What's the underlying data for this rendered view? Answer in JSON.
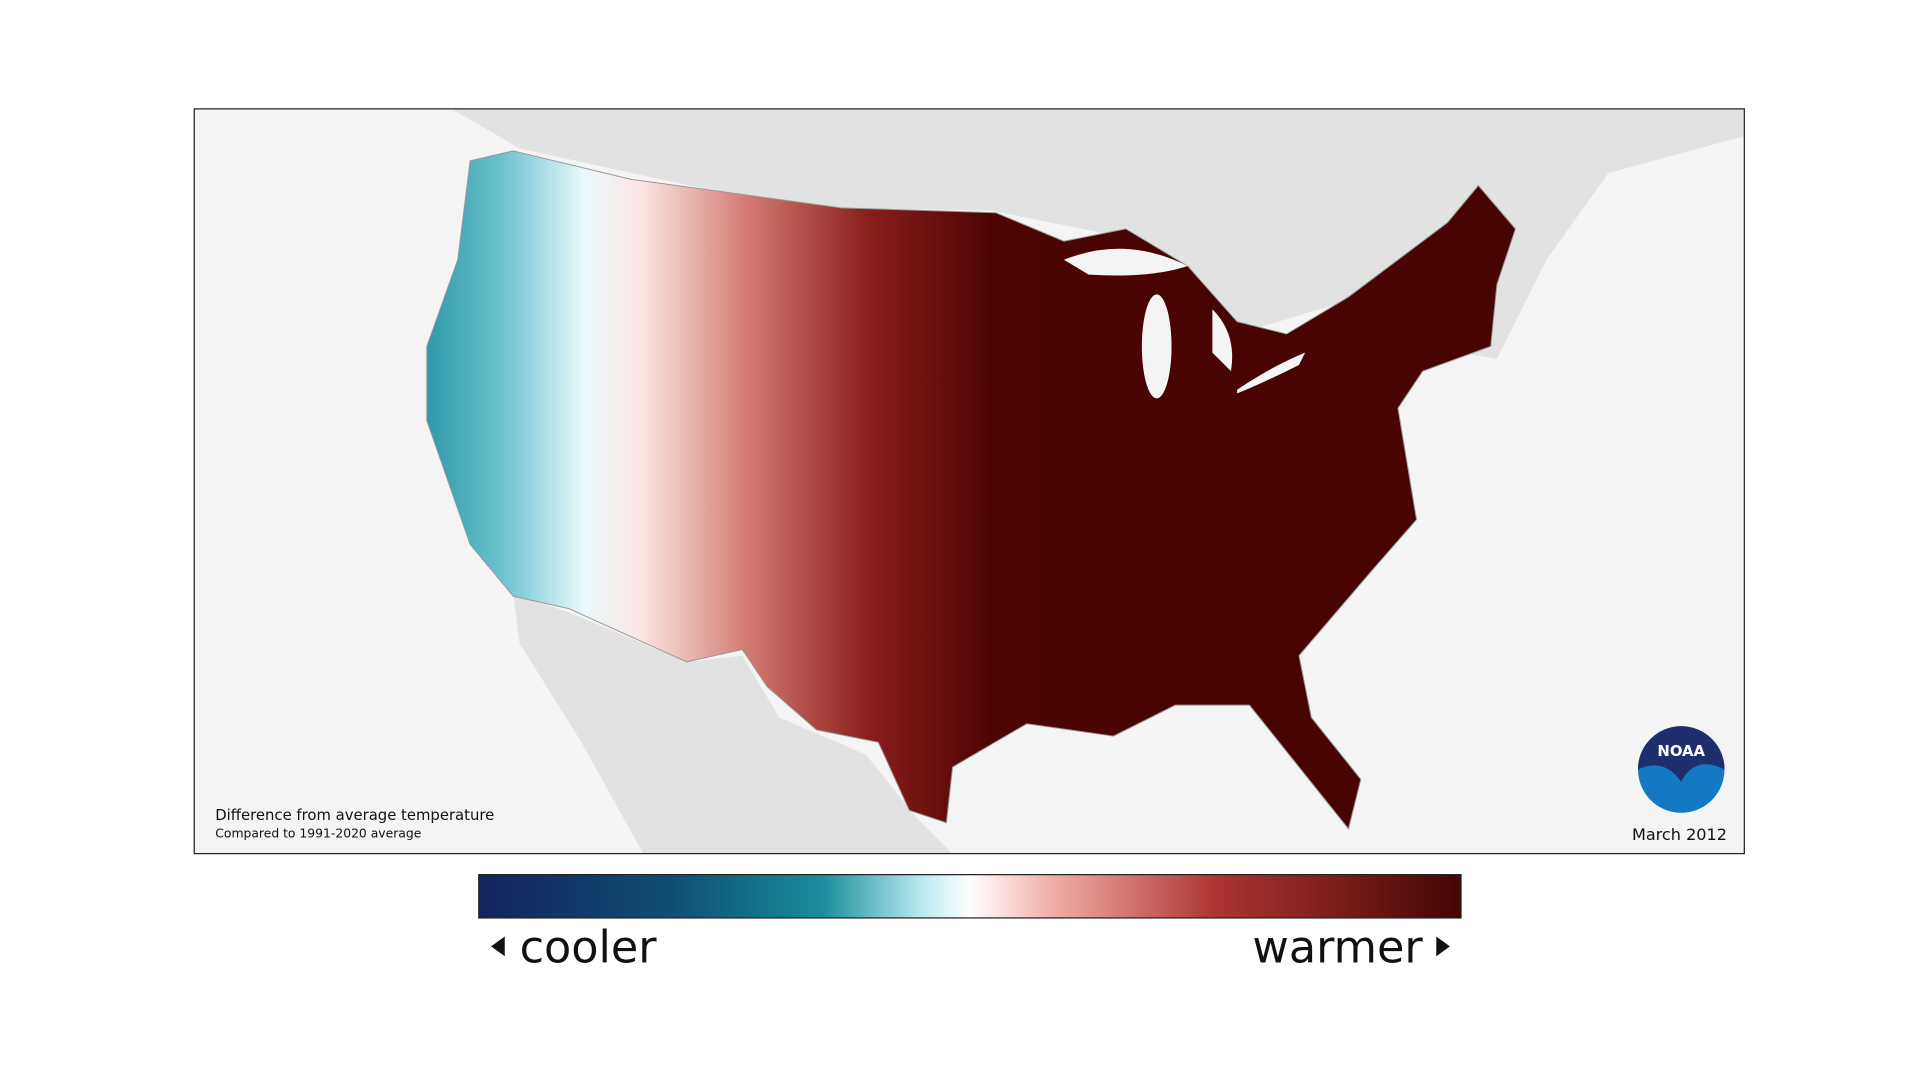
{
  "map": {
    "caption_title": "Difference from average temperature",
    "caption_subtitle": "Compared to 1991-2020 average",
    "date": "March 2012",
    "logo_text": "NOAA"
  },
  "legend": {
    "low_label": "cooler",
    "high_label": "warmer"
  }
}
